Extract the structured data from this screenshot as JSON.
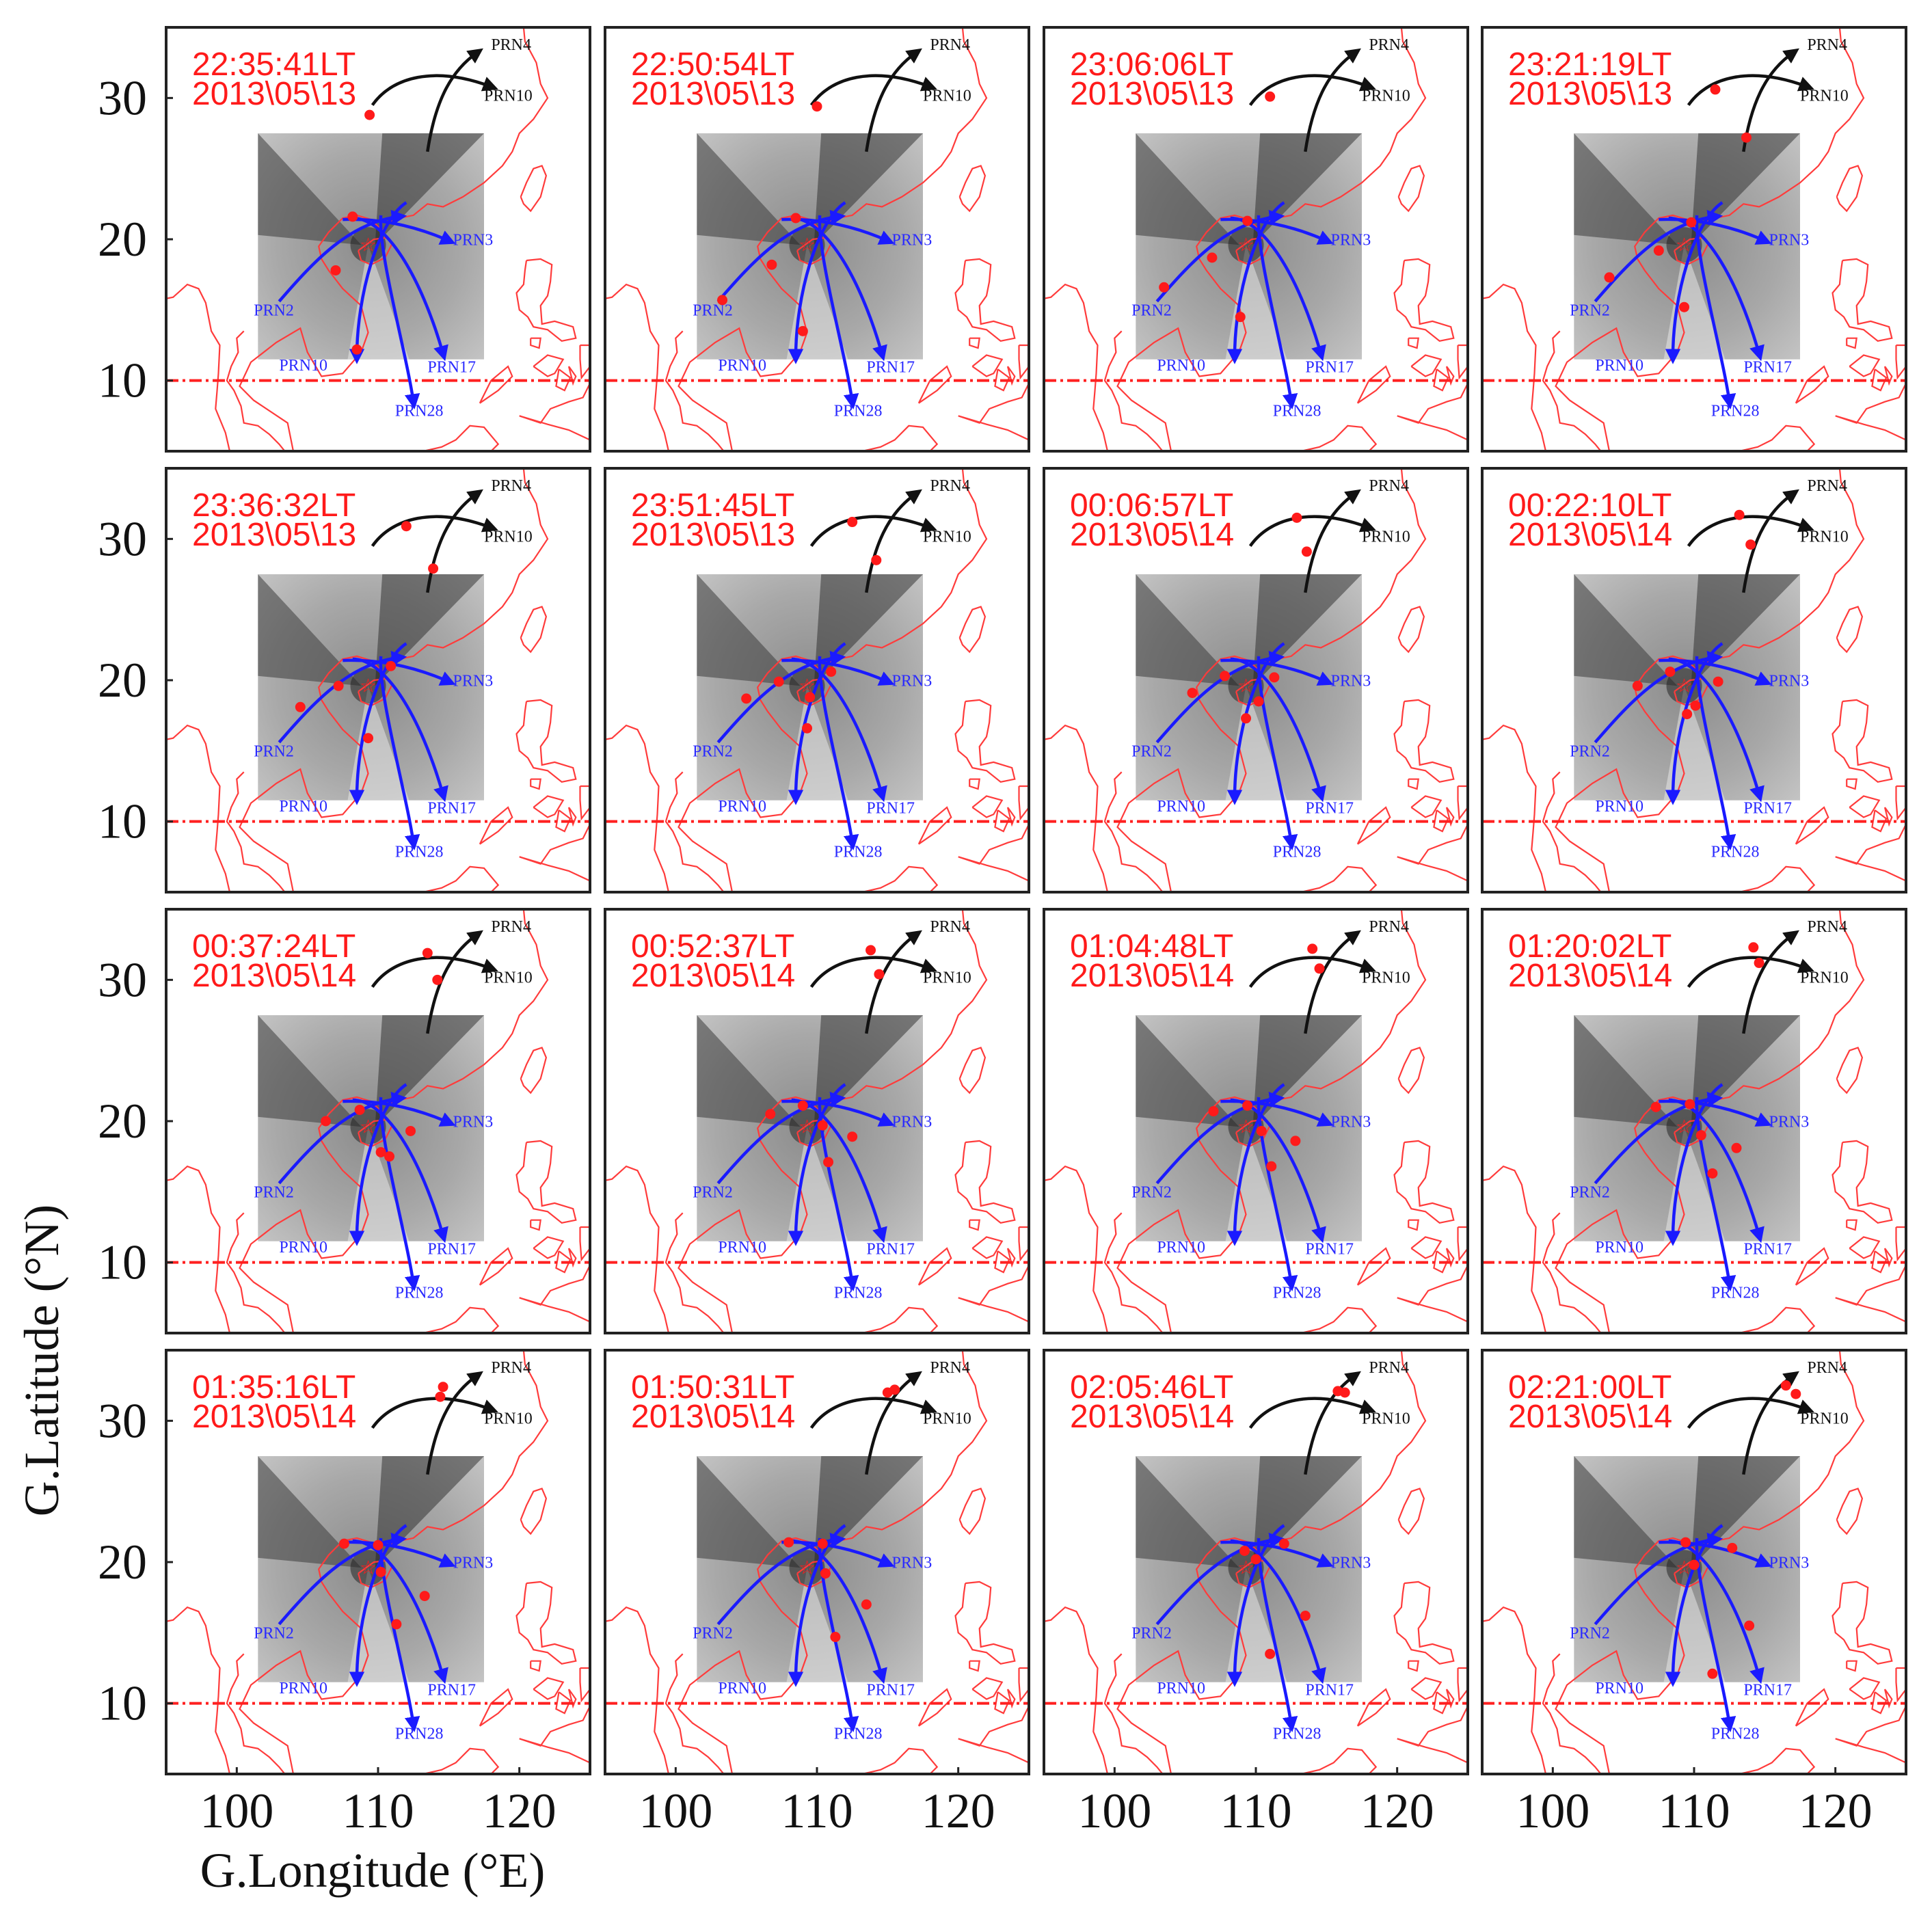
{
  "chart_data": {
    "type": "map-panels",
    "xlabel": "G.Longitude (°E)",
    "ylabel": "G.Latitude (°N)",
    "xlim": [
      95,
      125
    ],
    "ylim": [
      5,
      35
    ],
    "x_ticks": [
      100,
      110,
      120
    ],
    "y_ticks": [
      10,
      20,
      30
    ],
    "reference_line_latitude": 10,
    "site": {
      "lon": 109.3,
      "lat": 19.6
    },
    "tec_image_extent": {
      "lon": [
        101.5,
        117.5
      ],
      "lat": [
        11.5,
        27.5
      ]
    },
    "colors": {
      "coastline": "#ff3b3b",
      "trajectory_blue": "#1a1aff",
      "trajectory_black": "#111111",
      "ipp_marker": "#ff1a1a",
      "time_label": "#ff1a1a",
      "panel_border": "#222222"
    },
    "prns": [
      {
        "name": "PRN4",
        "color": "black",
        "points": [
          [
            113.5,
            26.2
          ],
          [
            114.0,
            29.5
          ],
          [
            115.0,
            31.8
          ],
          [
            117.0,
            33.2
          ]
        ],
        "label_at": [
          118.0,
          33.4
        ]
      },
      {
        "name": "PRN10",
        "color": "black",
        "points": [
          [
            109.6,
            29.5
          ],
          [
            111.0,
            31.5
          ],
          [
            114.0,
            32.3
          ],
          [
            118.0,
            30.8
          ]
        ],
        "label_at": [
          117.5,
          29.8
        ]
      },
      {
        "name": "PRN2",
        "color": "blue",
        "points": [
          [
            103.0,
            15.6
          ],
          [
            105.5,
            18.5
          ],
          [
            108.0,
            21.2
          ],
          [
            111.5,
            21.6
          ]
        ],
        "label_at": [
          101.2,
          14.6
        ]
      },
      {
        "name": "PRN3",
        "color": "blue",
        "points": [
          [
            107.5,
            21.4
          ],
          [
            110.0,
            21.5
          ],
          [
            112.5,
            21.0
          ],
          [
            115.0,
            19.9
          ]
        ],
        "label_at": [
          115.3,
          19.6
        ]
      },
      {
        "name": "PRN10",
        "color": "blue",
        "points": [
          [
            112.0,
            22.6
          ],
          [
            110.0,
            21.3
          ],
          [
            108.5,
            16.0
          ],
          [
            108.5,
            11.7
          ]
        ],
        "label_at": [
          103.0,
          10.7
        ]
      },
      {
        "name": "PRN17",
        "color": "blue",
        "points": [
          [
            108.2,
            21.5
          ],
          [
            110.5,
            21.5
          ],
          [
            113.0,
            17.5
          ],
          [
            114.6,
            11.9
          ]
        ],
        "label_at": [
          113.5,
          10.6
        ]
      },
      {
        "name": "PRN28",
        "color": "blue",
        "points": [
          [
            110.2,
            21.7
          ],
          [
            110.0,
            19.0
          ],
          [
            112.0,
            12.0
          ],
          [
            112.5,
            8.5
          ]
        ],
        "label_at": [
          111.2,
          7.5
        ]
      }
    ],
    "panels": [
      {
        "time": "22:35:41LT",
        "date": "2013\\05\\13",
        "ipp": [
          [
            109.4,
            28.8
          ],
          [
            107.0,
            17.8
          ],
          [
            108.5,
            12.2
          ],
          [
            108.2,
            21.6
          ]
        ]
      },
      {
        "time": "22:50:54LT",
        "date": "2013\\05\\13",
        "ipp": [
          [
            110.0,
            29.4
          ],
          [
            103.3,
            15.7
          ],
          [
            106.8,
            18.2
          ],
          [
            109.0,
            13.5
          ],
          [
            108.5,
            21.5
          ]
        ]
      },
      {
        "time": "23:06:06LT",
        "date": "2013\\05\\13",
        "ipp": [
          [
            111.0,
            30.1
          ],
          [
            103.5,
            16.6
          ],
          [
            106.9,
            18.7
          ],
          [
            108.9,
            14.5
          ],
          [
            109.4,
            21.3
          ]
        ]
      },
      {
        "time": "23:21:19LT",
        "date": "2013\\05\\13",
        "ipp": [
          [
            111.5,
            30.6
          ],
          [
            113.7,
            27.2
          ],
          [
            104.0,
            17.3
          ],
          [
            107.5,
            19.2
          ],
          [
            109.3,
            15.2
          ],
          [
            109.8,
            21.2
          ]
        ]
      },
      {
        "time": "23:36:32LT",
        "date": "2013\\05\\13",
        "ipp": [
          [
            112.0,
            30.9
          ],
          [
            113.9,
            27.9
          ],
          [
            104.5,
            18.1
          ],
          [
            107.2,
            19.6
          ],
          [
            109.3,
            15.9
          ],
          [
            110.9,
            21.0
          ]
        ]
      },
      {
        "time": "23:51:45LT",
        "date": "2013\\05\\13",
        "ipp": [
          [
            112.5,
            31.2
          ],
          [
            114.2,
            28.5
          ],
          [
            105.0,
            18.7
          ],
          [
            107.3,
            19.9
          ],
          [
            109.3,
            16.6
          ],
          [
            109.5,
            18.8
          ],
          [
            111.0,
            20.6
          ]
        ]
      },
      {
        "time": "00:06:57LT",
        "date": "2013\\05\\14",
        "ipp": [
          [
            112.9,
            31.5
          ],
          [
            113.6,
            29.1
          ],
          [
            105.5,
            19.1
          ],
          [
            107.8,
            20.3
          ],
          [
            109.3,
            17.3
          ],
          [
            110.2,
            18.5
          ],
          [
            111.3,
            20.2
          ]
        ]
      },
      {
        "time": "00:22:10LT",
        "date": "2013\\05\\14",
        "ipp": [
          [
            113.2,
            31.7
          ],
          [
            114.0,
            29.6
          ],
          [
            106.0,
            19.6
          ],
          [
            108.3,
            20.6
          ],
          [
            109.5,
            17.6
          ],
          [
            110.1,
            18.2
          ],
          [
            111.7,
            19.9
          ]
        ]
      },
      {
        "time": "00:37:24LT",
        "date": "2013\\05\\14",
        "ipp": [
          [
            113.5,
            31.9
          ],
          [
            114.2,
            30.0
          ],
          [
            106.3,
            20.0
          ],
          [
            108.7,
            20.8
          ],
          [
            110.2,
            17.8
          ],
          [
            110.8,
            17.5
          ],
          [
            112.3,
            19.3
          ]
        ]
      },
      {
        "time": "00:52:37LT",
        "date": "2013\\05\\14",
        "ipp": [
          [
            113.8,
            32.1
          ],
          [
            114.4,
            30.4
          ],
          [
            106.7,
            20.5
          ],
          [
            109.0,
            21.1
          ],
          [
            110.8,
            17.1
          ],
          [
            110.4,
            19.7
          ],
          [
            112.5,
            18.9
          ]
        ]
      },
      {
        "time": "01:04:48LT",
        "date": "2013\\05\\14",
        "ipp": [
          [
            114.0,
            32.2
          ],
          [
            114.5,
            30.8
          ],
          [
            107.0,
            20.7
          ],
          [
            109.4,
            21.1
          ],
          [
            111.1,
            16.8
          ],
          [
            110.4,
            19.3
          ],
          [
            112.8,
            18.6
          ]
        ]
      },
      {
        "time": "01:20:02LT",
        "date": "2013\\05\\14",
        "ipp": [
          [
            114.2,
            32.3
          ],
          [
            114.6,
            31.2
          ],
          [
            107.3,
            21.0
          ],
          [
            109.7,
            21.2
          ],
          [
            111.3,
            16.3
          ],
          [
            110.5,
            19.0
          ],
          [
            113.0,
            18.1
          ]
        ]
      },
      {
        "time": "01:35:16LT",
        "date": "2013\\05\\14",
        "ipp": [
          [
            114.6,
            32.4
          ],
          [
            114.4,
            31.7
          ],
          [
            107.6,
            21.3
          ],
          [
            110.0,
            21.2
          ],
          [
            111.3,
            15.6
          ],
          [
            110.2,
            19.3
          ],
          [
            113.3,
            17.6
          ]
        ]
      },
      {
        "time": "01:50:31LT",
        "date": "2013\\05\\14",
        "ipp": [
          [
            115.0,
            32.0
          ],
          [
            115.5,
            32.2
          ],
          [
            108.0,
            21.4
          ],
          [
            110.4,
            21.3
          ],
          [
            111.3,
            14.7
          ],
          [
            110.6,
            19.2
          ],
          [
            113.5,
            17.0
          ]
        ]
      },
      {
        "time": "02:05:46LT",
        "date": "2013\\05\\14",
        "ipp": [
          [
            115.8,
            32.1
          ],
          [
            116.3,
            32.0
          ],
          [
            109.2,
            20.8
          ],
          [
            112.0,
            21.3
          ],
          [
            111.0,
            13.5
          ],
          [
            110.0,
            20.2
          ],
          [
            113.5,
            16.2
          ]
        ]
      },
      {
        "time": "02:21:00LT",
        "date": "2013\\05\\14",
        "ipp": [
          [
            116.5,
            32.5
          ],
          [
            117.2,
            31.9
          ],
          [
            109.4,
            21.4
          ],
          [
            112.7,
            21.0
          ],
          [
            111.3,
            12.1
          ],
          [
            110.0,
            19.8
          ],
          [
            113.9,
            15.5
          ]
        ]
      }
    ],
    "coastlines": [
      [
        [
          104.0,
          5.0
        ],
        [
          103.6,
          7.0
        ],
        [
          101.2,
          8.6
        ],
        [
          100.2,
          9.6
        ],
        [
          101.0,
          11.3
        ],
        [
          102.8,
          12.7
        ],
        [
          104.5,
          13.7
        ],
        [
          105.0,
          12.0
        ],
        [
          106.0,
          10.3
        ],
        [
          107.5,
          10.5
        ],
        [
          108.8,
          12.0
        ],
        [
          109.3,
          13.4
        ],
        [
          108.8,
          15.3
        ],
        [
          107.5,
          16.5
        ],
        [
          106.5,
          17.8
        ],
        [
          106.0,
          18.6
        ],
        [
          105.8,
          19.5
        ],
        [
          106.5,
          20.5
        ],
        [
          107.5,
          21.5
        ],
        [
          108.5,
          21.7
        ],
        [
          109.5,
          21.4
        ],
        [
          110.3,
          20.6
        ],
        [
          111.0,
          21.4
        ],
        [
          112.5,
          21.7
        ],
        [
          113.5,
          22.5
        ],
        [
          114.6,
          22.3
        ],
        [
          116.0,
          23.0
        ],
        [
          117.5,
          24.0
        ],
        [
          118.8,
          25.2
        ],
        [
          119.5,
          26.2
        ],
        [
          120.0,
          27.5
        ],
        [
          121.0,
          28.5
        ],
        [
          122.0,
          30.0
        ],
        [
          121.5,
          31.0
        ],
        [
          121.2,
          32.5
        ],
        [
          120.4,
          34.0
        ],
        [
          120.3,
          35.0
        ]
      ],
      [
        [
          108.6,
          19.2
        ],
        [
          108.8,
          18.5
        ],
        [
          109.5,
          18.2
        ],
        [
          110.5,
          18.7
        ],
        [
          111.0,
          19.7
        ],
        [
          110.6,
          20.1
        ],
        [
          109.7,
          20.0
        ],
        [
          108.6,
          19.2
        ]
      ],
      [
        [
          120.1,
          23.0
        ],
        [
          120.3,
          22.5
        ],
        [
          120.8,
          22.0
        ],
        [
          121.5,
          23.0
        ],
        [
          121.9,
          24.5
        ],
        [
          121.6,
          25.2
        ],
        [
          121.0,
          25.0
        ],
        [
          120.5,
          24.0
        ],
        [
          120.1,
          23.0
        ]
      ],
      [
        [
          120.5,
          18.5
        ],
        [
          121.5,
          18.6
        ],
        [
          122.3,
          18.2
        ],
        [
          122.2,
          17.0
        ],
        [
          122.0,
          16.0
        ],
        [
          121.5,
          15.3
        ],
        [
          121.6,
          14.0
        ],
        [
          122.5,
          14.2
        ],
        [
          123.8,
          13.8
        ],
        [
          124.0,
          13.0
        ],
        [
          123.0,
          12.8
        ],
        [
          122.0,
          13.6
        ],
        [
          121.0,
          13.8
        ],
        [
          120.6,
          14.5
        ],
        [
          120.0,
          15.0
        ],
        [
          119.8,
          16.2
        ],
        [
          120.3,
          16.8
        ],
        [
          120.4,
          17.8
        ],
        [
          120.5,
          18.5
        ]
      ],
      [
        [
          117.2,
          8.4
        ],
        [
          118.5,
          9.3
        ],
        [
          119.5,
          10.3
        ],
        [
          119.2,
          11.0
        ],
        [
          118.0,
          10.0
        ],
        [
          117.2,
          8.4
        ]
      ],
      [
        [
          120.8,
          13.0
        ],
        [
          121.5,
          13.0
        ],
        [
          121.4,
          12.3
        ],
        [
          120.8,
          12.5
        ],
        [
          120.8,
          13.0
        ]
      ],
      [
        [
          121.0,
          11.0
        ],
        [
          122.0,
          11.8
        ],
        [
          123.1,
          11.5
        ],
        [
          122.5,
          10.5
        ],
        [
          122.0,
          10.3
        ],
        [
          121.0,
          11.0
        ]
      ],
      [
        [
          122.8,
          10.8
        ],
        [
          123.6,
          10.2
        ],
        [
          123.2,
          9.3
        ],
        [
          122.6,
          9.6
        ],
        [
          122.8,
          10.8
        ]
      ],
      [
        [
          123.5,
          11.0
        ],
        [
          124.0,
          10.3
        ],
        [
          123.8,
          9.8
        ],
        [
          123.5,
          11.0
        ]
      ],
      [
        [
          124.3,
          12.5
        ],
        [
          125.0,
          12.5
        ],
        [
          125.0,
          11.0
        ],
        [
          124.4,
          10.2
        ],
        [
          124.3,
          11.5
        ],
        [
          124.3,
          12.5
        ]
      ],
      [
        [
          120.0,
          7.5
        ],
        [
          121.5,
          7.0
        ],
        [
          122.2,
          8.0
        ],
        [
          123.5,
          8.5
        ],
        [
          124.5,
          8.8
        ],
        [
          125.0,
          9.8
        ],
        [
          125.0,
          5.8
        ],
        [
          123.5,
          6.5
        ],
        [
          122.0,
          6.9
        ],
        [
          120.0,
          7.5
        ]
      ],
      [
        [
          113.2,
          5.0
        ],
        [
          114.5,
          5.3
        ],
        [
          115.5,
          5.8
        ],
        [
          116.5,
          6.8
        ],
        [
          117.5,
          6.7
        ],
        [
          118.5,
          5.5
        ],
        [
          118.0,
          5.0
        ]
      ],
      [
        [
          99.5,
          5.0
        ],
        [
          99.2,
          6.3
        ],
        [
          98.5,
          8.0
        ],
        [
          98.6,
          9.2
        ],
        [
          98.7,
          10.5
        ],
        [
          98.8,
          12.5
        ],
        [
          98.2,
          13.5
        ],
        [
          97.8,
          15.5
        ],
        [
          97.3,
          16.5
        ],
        [
          96.5,
          16.8
        ],
        [
          95.5,
          15.9
        ],
        [
          95.0,
          15.8
        ]
      ],
      [
        [
          100.5,
          13.5
        ],
        [
          100.0,
          13.0
        ],
        [
          100.1,
          12.0
        ],
        [
          99.6,
          11.0
        ],
        [
          99.3,
          10.0
        ],
        [
          99.8,
          9.3
        ],
        [
          100.3,
          8.2
        ],
        [
          100.5,
          7.0
        ],
        [
          101.5,
          6.8
        ],
        [
          102.3,
          6.2
        ],
        [
          103.0,
          5.5
        ],
        [
          103.4,
          5.0
        ]
      ]
    ]
  }
}
